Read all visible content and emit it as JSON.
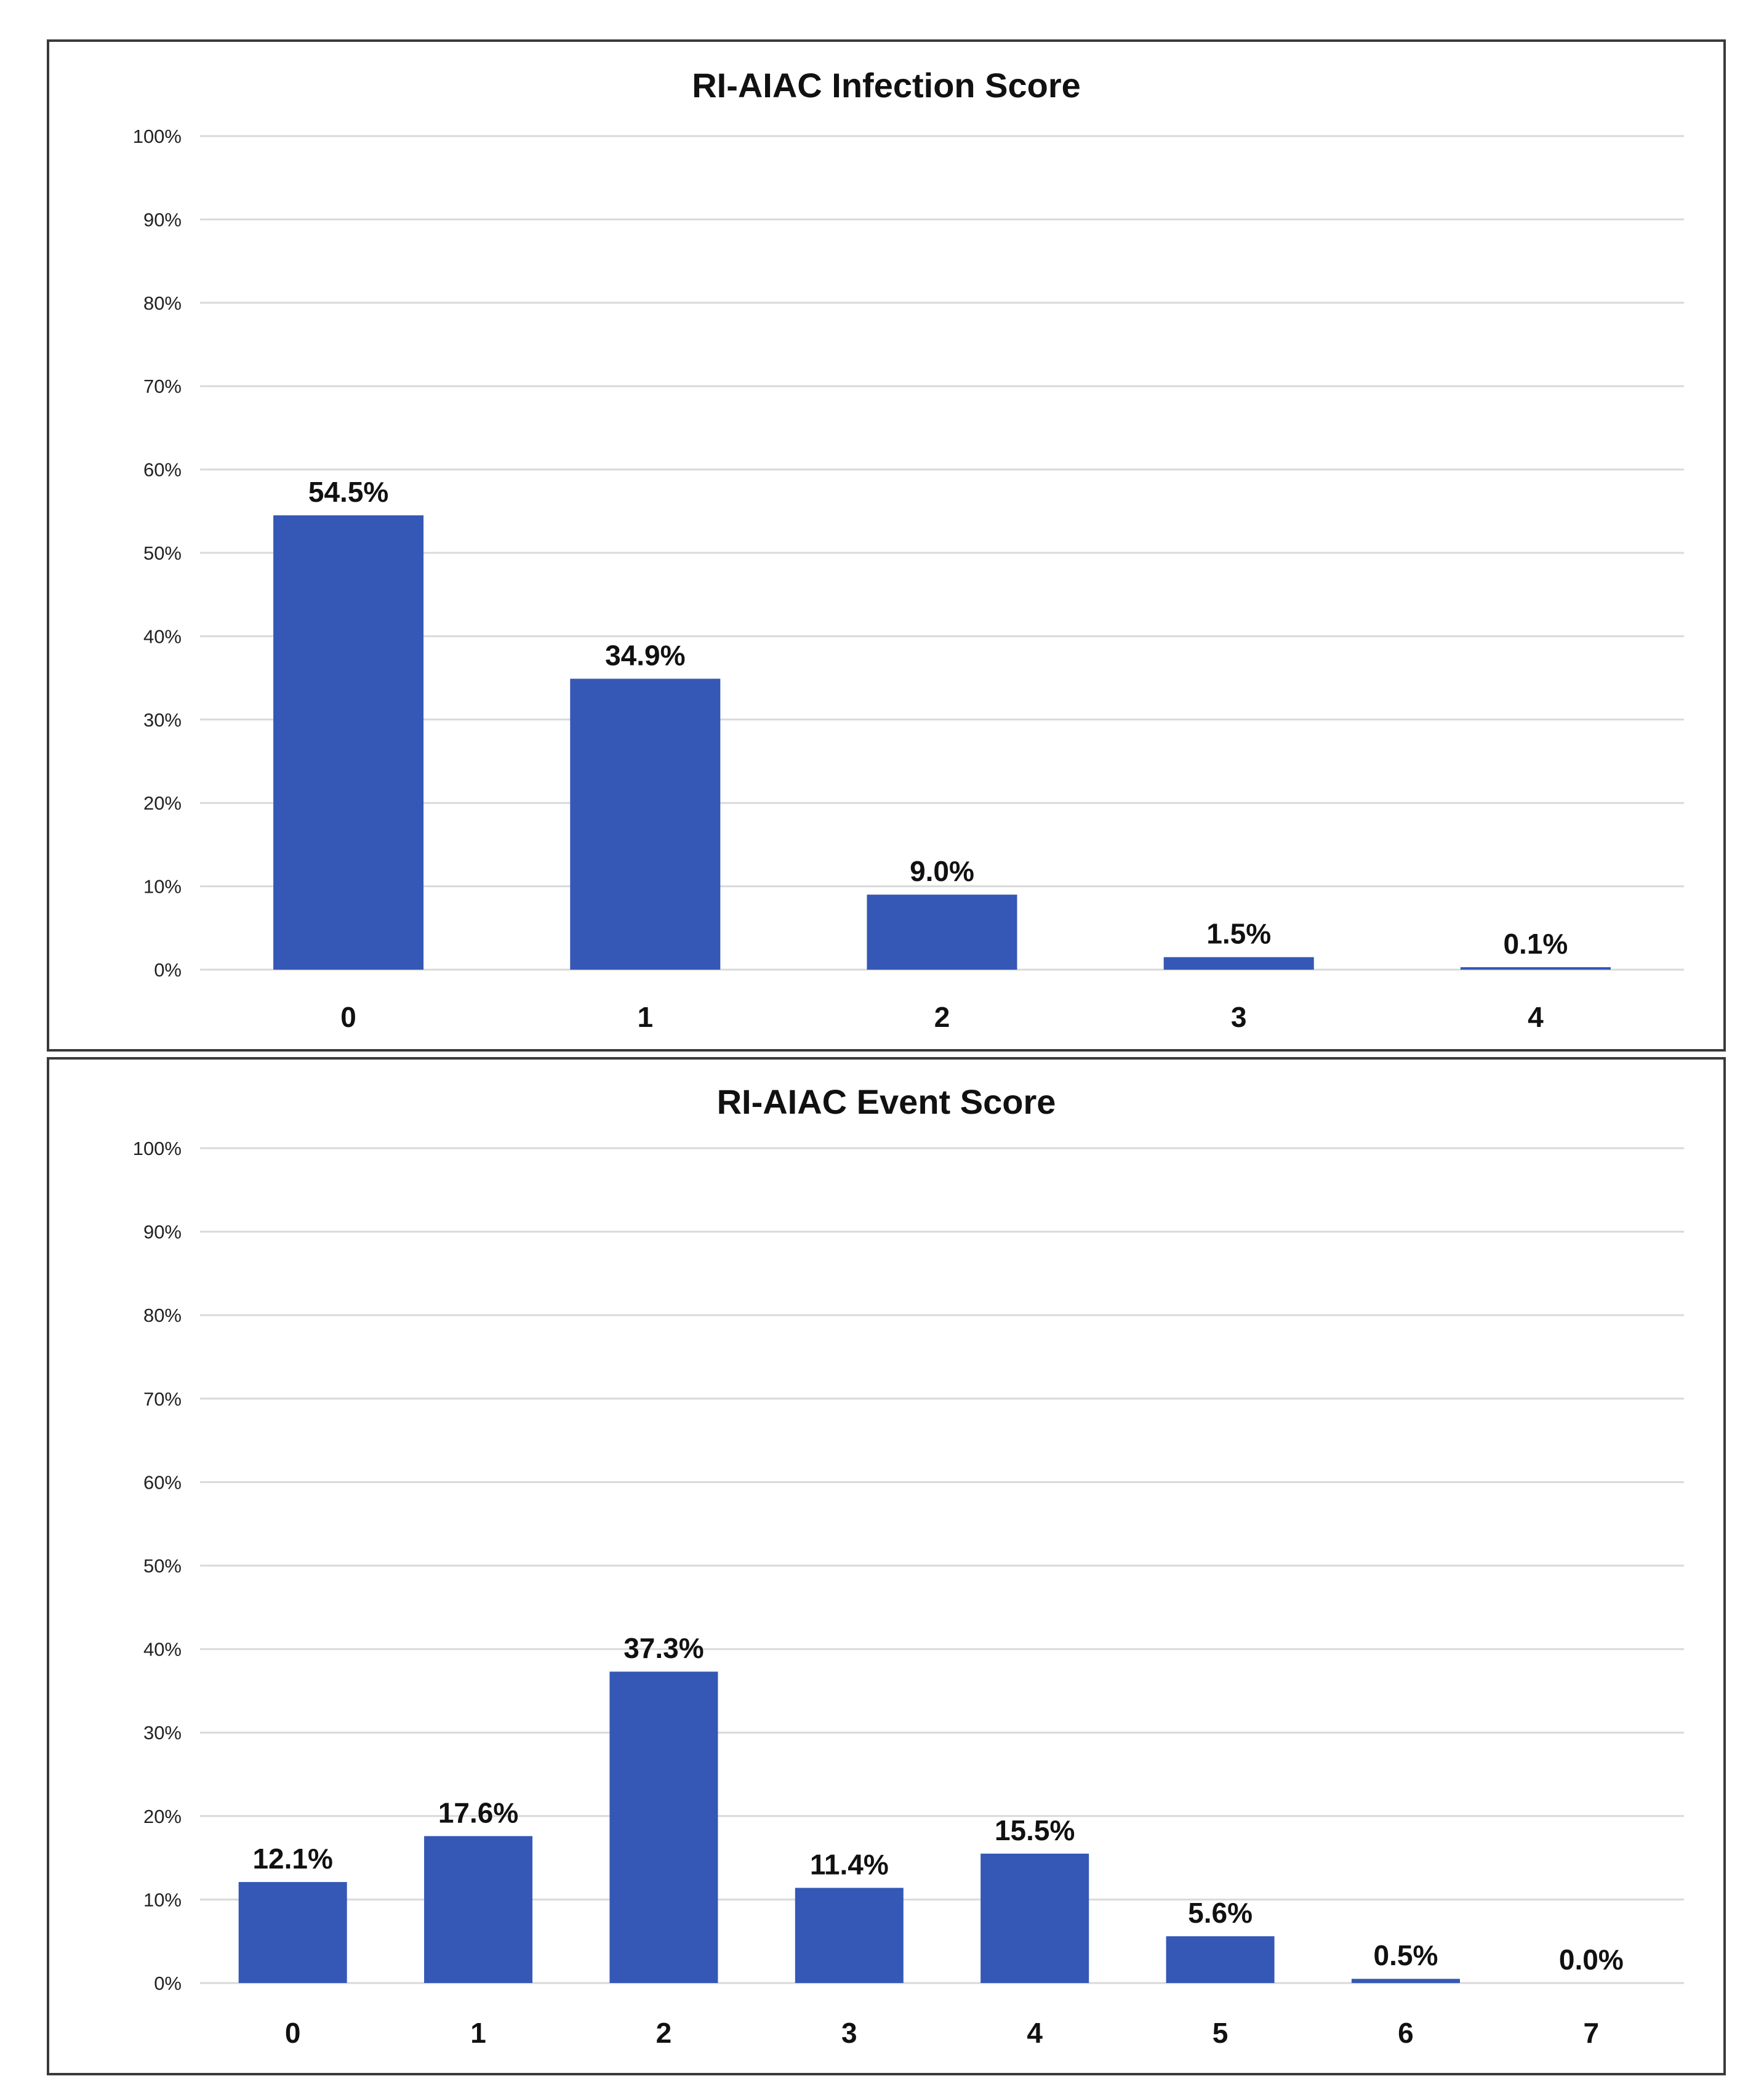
{
  "colors": {
    "bar": "#3558B6",
    "grid": "#d9d9d9"
  },
  "chart_data": [
    {
      "type": "bar",
      "title": "RI-AIAC Infection Score",
      "categories": [
        "0",
        "1",
        "2",
        "3",
        "4"
      ],
      "values": [
        54.5,
        34.9,
        9.0,
        1.5,
        0.1
      ],
      "data_labels": [
        "54.5%",
        "34.9%",
        "9.0%",
        "1.5%",
        "0.1%"
      ],
      "ylim": [
        0,
        100
      ],
      "yticks": [
        "0%",
        "10%",
        "20%",
        "30%",
        "40%",
        "50%",
        "60%",
        "70%",
        "80%",
        "90%",
        "100%"
      ],
      "grid": true,
      "legend": "none"
    },
    {
      "type": "bar",
      "title": "RI-AIAC Event Score",
      "categories": [
        "0",
        "1",
        "2",
        "3",
        "4",
        "5",
        "6",
        "7"
      ],
      "values": [
        12.1,
        17.6,
        37.3,
        11.4,
        15.5,
        5.6,
        0.5,
        0.0
      ],
      "data_labels": [
        "12.1%",
        "17.6%",
        "37.3%",
        "11.4%",
        "15.5%",
        "5.6%",
        "0.5%",
        "0.0%"
      ],
      "ylim": [
        0,
        100
      ],
      "yticks": [
        "0%",
        "10%",
        "20%",
        "30%",
        "40%",
        "50%",
        "60%",
        "70%",
        "80%",
        "90%",
        "100%"
      ],
      "grid": true,
      "legend": "none"
    }
  ]
}
